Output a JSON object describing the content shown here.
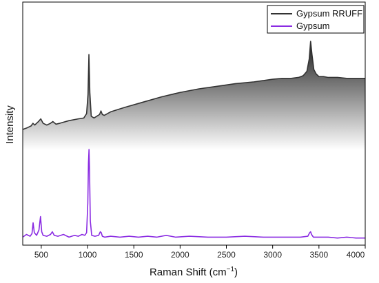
{
  "chart_data": {
    "type": "line",
    "xlabel_main": "Raman Shift (cm",
    "xlabel_sup": "−1",
    "xlabel_close": ")",
    "ylabel": "Intensity",
    "xlim": [
      300,
      4000
    ],
    "xticks": [
      500,
      1000,
      1500,
      2000,
      2500,
      3000,
      3500,
      4000
    ],
    "y_ticks_shown": false,
    "grid": false,
    "legend_position": "top-right",
    "series": [
      {
        "name": "Gypsum RRUFF",
        "color": "#333333",
        "fill": "gradient-gray-to-white",
        "ylim": [
          0,
          1
        ],
        "x": [
          300,
          350,
          390,
          410,
          430,
          470,
          495,
          520,
          560,
          600,
          625,
          660,
          700,
          800,
          900,
          960,
          990,
          1005,
          1015,
          1025,
          1040,
          1070,
          1100,
          1130,
          1145,
          1160,
          1180,
          1250,
          1400,
          1600,
          1800,
          2000,
          2200,
          2400,
          2600,
          2800,
          3000,
          3100,
          3200,
          3280,
          3330,
          3370,
          3395,
          3410,
          3425,
          3445,
          3470,
          3500,
          3550,
          3600,
          3700,
          3800,
          3900,
          4000
        ],
        "y": [
          0.0,
          0.02,
          0.04,
          0.07,
          0.05,
          0.09,
          0.12,
          0.07,
          0.05,
          0.07,
          0.09,
          0.06,
          0.07,
          0.1,
          0.12,
          0.13,
          0.18,
          0.4,
          0.85,
          0.42,
          0.15,
          0.13,
          0.15,
          0.17,
          0.21,
          0.17,
          0.16,
          0.2,
          0.25,
          0.31,
          0.37,
          0.42,
          0.46,
          0.49,
          0.52,
          0.54,
          0.57,
          0.58,
          0.58,
          0.59,
          0.61,
          0.66,
          0.8,
          1.0,
          0.85,
          0.68,
          0.63,
          0.6,
          0.6,
          0.59,
          0.59,
          0.58,
          0.58,
          0.58
        ]
      },
      {
        "name": "Gypsum",
        "color": "#8a2be2",
        "ylim": [
          0,
          1
        ],
        "x": [
          300,
          340,
          380,
          400,
          412,
          425,
          450,
          475,
          492,
          505,
          520,
          560,
          600,
          620,
          640,
          680,
          740,
          800,
          860,
          900,
          940,
          970,
          990,
          1003,
          1010,
          1016,
          1022,
          1030,
          1045,
          1080,
          1120,
          1138,
          1148,
          1160,
          1185,
          1250,
          1350,
          1450,
          1550,
          1650,
          1750,
          1850,
          1950,
          2100,
          2300,
          2500,
          2700,
          2900,
          3100,
          3300,
          3380,
          3400,
          3410,
          3420,
          3440,
          3500,
          3600,
          3700,
          3800,
          3900,
          4000
        ],
        "y": [
          0.02,
          0.05,
          0.03,
          0.06,
          0.18,
          0.07,
          0.04,
          0.1,
          0.25,
          0.08,
          0.04,
          0.03,
          0.05,
          0.08,
          0.04,
          0.03,
          0.05,
          0.02,
          0.04,
          0.03,
          0.05,
          0.04,
          0.07,
          0.4,
          0.85,
          1.0,
          0.75,
          0.2,
          0.04,
          0.03,
          0.04,
          0.08,
          0.07,
          0.03,
          0.02,
          0.03,
          0.02,
          0.03,
          0.02,
          0.03,
          0.02,
          0.04,
          0.02,
          0.03,
          0.02,
          0.02,
          0.03,
          0.02,
          0.02,
          0.02,
          0.03,
          0.07,
          0.08,
          0.05,
          0.02,
          0.02,
          0.02,
          0.01,
          0.02,
          0.01,
          0.01
        ]
      }
    ]
  }
}
